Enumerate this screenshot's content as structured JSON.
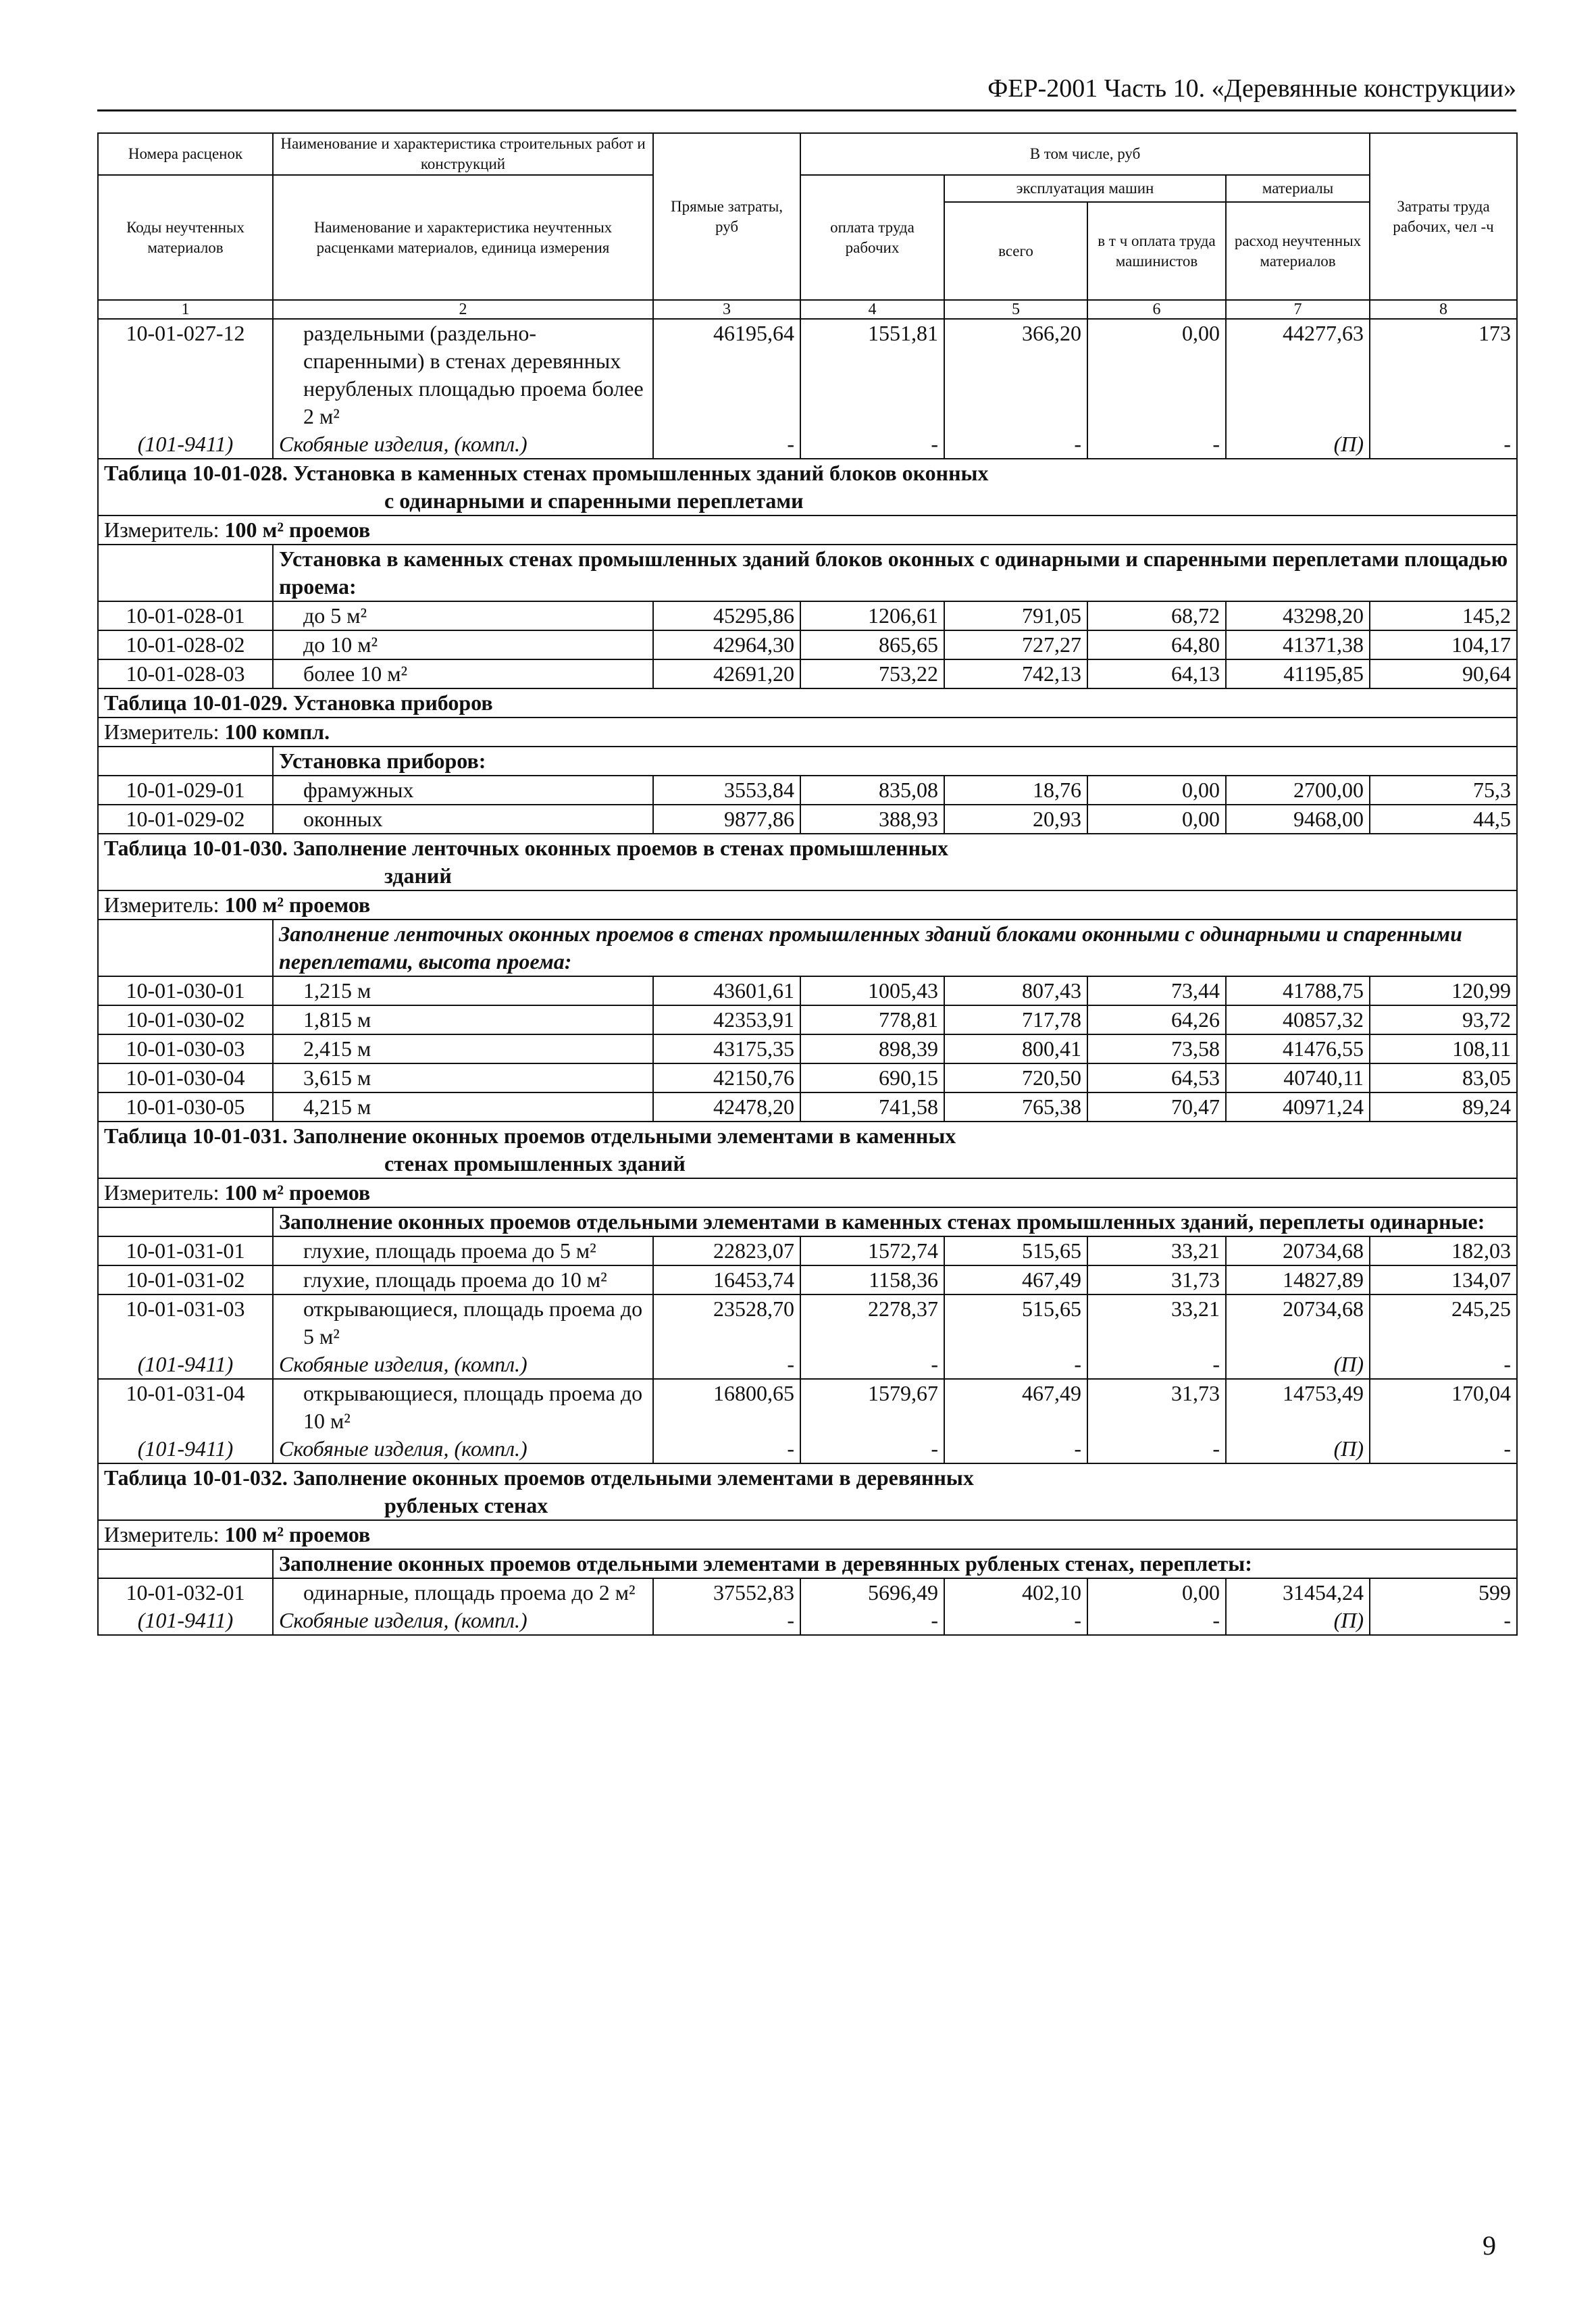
{
  "running_head": "ФЕР-2001 Часть 10. «Деревянные конструкции»",
  "page_number": "9",
  "header": {
    "c1_top": "Номера расценок",
    "c1_bottom": "Коды неучтенных материалов",
    "c2_top": "Наименование и характеристика строительных работ и конструкций",
    "c2_bottom": "Наименование и характеристика неучтенных расценками материалов, единица измерения",
    "c3": "Прямые затраты, руб",
    "incl": "В том числе, руб",
    "labor_pay": "оплата труда рабочих",
    "machines": "эксплуатация машин",
    "machines_total": "всего",
    "machines_operators": "в т ч оплата труда машинистов",
    "materials": "материалы",
    "materials_unaccounted": "расход неучтенных материалов",
    "labor_cost": "Затраты труда рабочих, чел -ч",
    "col_numbers": [
      "1",
      "2",
      "3",
      "4",
      "5",
      "6",
      "7",
      "8"
    ]
  },
  "top_rows": [
    {
      "code": "10-01-027-12",
      "name": "раздельными (раздельно-спаренными) в стенах деревянных нерубленых площадью проема более 2 м²",
      "values": [
        "46195,64",
        "1551,81",
        "366,20",
        "0,00",
        "44277,63",
        "173"
      ],
      "sub": {
        "code": "(101-9411)",
        "name": "Скобяные изделия, (компл.)",
        "values": [
          "-",
          "-",
          "-",
          "-",
          "(П)",
          "-"
        ]
      }
    }
  ],
  "sections": [
    {
      "title": "Таблица 10-01-028. Установка в каменных стенах промышленных зданий блоков оконных",
      "title2": "с одинарными и спаренными переплетами",
      "measure_label": "Измеритель:",
      "measure_value": "100 м² проемов",
      "group": "Установка в каменных стенах промышленных зданий блоков оконных с одинарными и спаренными переплетами площадью проема:",
      "group_italic": false,
      "rows": [
        {
          "code": "10-01-028-01",
          "name": "до 5 м²",
          "values": [
            "45295,86",
            "1206,61",
            "791,05",
            "68,72",
            "43298,20",
            "145,2"
          ]
        },
        {
          "code": "10-01-028-02",
          "name": "до 10 м²",
          "values": [
            "42964,30",
            "865,65",
            "727,27",
            "64,80",
            "41371,38",
            "104,17"
          ]
        },
        {
          "code": "10-01-028-03",
          "name": "более 10 м²",
          "values": [
            "42691,20",
            "753,22",
            "742,13",
            "64,13",
            "41195,85",
            "90,64"
          ]
        }
      ]
    },
    {
      "title": "Таблица 10-01-029. Установка приборов",
      "title2": "",
      "measure_label": "Измеритель:",
      "measure_value": "100 компл.",
      "group": "Установка приборов:",
      "group_italic": false,
      "rows": [
        {
          "code": "10-01-029-01",
          "name": "фрамужных",
          "values": [
            "3553,84",
            "835,08",
            "18,76",
            "0,00",
            "2700,00",
            "75,3"
          ]
        },
        {
          "code": "10-01-029-02",
          "name": "оконных",
          "values": [
            "9877,86",
            "388,93",
            "20,93",
            "0,00",
            "9468,00",
            "44,5"
          ]
        }
      ]
    },
    {
      "title": "Таблица 10-01-030. Заполнение ленточных оконных проемов в стенах промышленных",
      "title2": "зданий",
      "measure_label": "Измеритель:",
      "measure_value": "100 м² проемов",
      "group": "Заполнение ленточных оконных проемов в стенах промышленных зданий блоками оконными с одинарными и спаренными переплетами, высота проема:",
      "group_italic": true,
      "rows": [
        {
          "code": "10-01-030-01",
          "name": "1,215 м",
          "values": [
            "43601,61",
            "1005,43",
            "807,43",
            "73,44",
            "41788,75",
            "120,99"
          ]
        },
        {
          "code": "10-01-030-02",
          "name": "1,815 м",
          "values": [
            "42353,91",
            "778,81",
            "717,78",
            "64,26",
            "40857,32",
            "93,72"
          ]
        },
        {
          "code": "10-01-030-03",
          "name": "2,415 м",
          "values": [
            "43175,35",
            "898,39",
            "800,41",
            "73,58",
            "41476,55",
            "108,11"
          ]
        },
        {
          "code": "10-01-030-04",
          "name": "3,615 м",
          "values": [
            "42150,76",
            "690,15",
            "720,50",
            "64,53",
            "40740,11",
            "83,05"
          ]
        },
        {
          "code": "10-01-030-05",
          "name": "4,215 м",
          "values": [
            "42478,20",
            "741,58",
            "765,38",
            "70,47",
            "40971,24",
            "89,24"
          ]
        }
      ]
    },
    {
      "title": "Таблица 10-01-031. Заполнение оконных проемов отдельными элементами в каменных",
      "title2": "стенах промышленных зданий",
      "measure_label": "Измеритель:",
      "measure_value": "100 м² проемов",
      "group": "Заполнение оконных проемов отдельными элементами в каменных стенах промышленных зданий, переплеты одинарные:",
      "group_italic": false,
      "rows": [
        {
          "code": "10-01-031-01",
          "name": "глухие, площадь проема до 5 м²",
          "values": [
            "22823,07",
            "1572,74",
            "515,65",
            "33,21",
            "20734,68",
            "182,03"
          ]
        },
        {
          "code": "10-01-031-02",
          "name": "глухие, площадь проема до 10 м²",
          "values": [
            "16453,74",
            "1158,36",
            "467,49",
            "31,73",
            "14827,89",
            "134,07"
          ]
        },
        {
          "code": "10-01-031-03",
          "name": "открывающиеся, площадь проема до 5 м²",
          "values": [
            "23528,70",
            "2278,37",
            "515,65",
            "33,21",
            "20734,68",
            "245,25"
          ],
          "sub": {
            "code": "(101-9411)",
            "name": "Скобяные изделия, (компл.)",
            "values": [
              "-",
              "-",
              "-",
              "-",
              "(П)",
              "-"
            ]
          }
        },
        {
          "code": "10-01-031-04",
          "name": "открывающиеся, площадь проема до 10 м²",
          "values": [
            "16800,65",
            "1579,67",
            "467,49",
            "31,73",
            "14753,49",
            "170,04"
          ],
          "sub": {
            "code": "(101-9411)",
            "name": "Скобяные изделия, (компл.)",
            "values": [
              "-",
              "-",
              "-",
              "-",
              "(П)",
              "-"
            ]
          }
        }
      ]
    },
    {
      "title": "Таблица 10-01-032. Заполнение оконных проемов отдельными элементами в деревянных",
      "title2": "рубленых стенах",
      "measure_label": "Измеритель:",
      "measure_value": "100 м² проемов",
      "group": "Заполнение оконных проемов отдельными элементами в деревянных рубленых стенах, переплеты:",
      "group_italic": false,
      "rows": [
        {
          "code": "10-01-032-01",
          "name": "одинарные, площадь проема до 2 м²",
          "values": [
            "37552,83",
            "5696,49",
            "402,10",
            "0,00",
            "31454,24",
            "599"
          ],
          "sub": {
            "code": "(101-9411)",
            "name": "Скобяные изделия, (компл.)",
            "values": [
              "-",
              "-",
              "-",
              "-",
              "(П)",
              "-"
            ]
          }
        }
      ]
    }
  ]
}
